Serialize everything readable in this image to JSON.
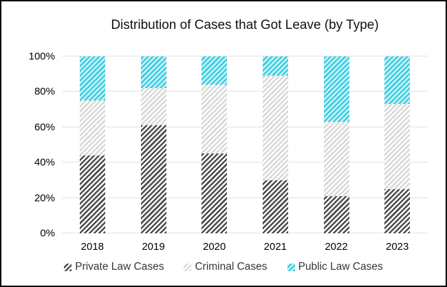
{
  "frame": {
    "background": "#ffffff",
    "border_color": "#000000"
  },
  "chart_data": {
    "type": "bar",
    "stacked": true,
    "percent_stacked": true,
    "title": "Distribution of Cases that Got Leave (by Type)",
    "categories": [
      "2018",
      "2019",
      "2020",
      "2021",
      "2022",
      "2023"
    ],
    "series": [
      {
        "name": "Private Law Cases",
        "values": [
          44,
          61,
          45,
          30,
          21,
          25
        ],
        "stripe_color": "#4c4c4c",
        "gap_color": "#ffffff",
        "pattern": "diagonal-stripes-up-right"
      },
      {
        "name": "Criminal Cases",
        "values": [
          31,
          21,
          39,
          59,
          42,
          48
        ],
        "stripe_color": "#d8d8d8",
        "gap_color": "#ffffff",
        "pattern": "diagonal-stripes-up-right"
      },
      {
        "name": "Public Law Cases",
        "values": [
          25,
          18,
          16,
          11,
          37,
          27
        ],
        "stripe_color": "#3bcde1",
        "gap_color": "#cdf2f8",
        "pattern": "diagonal-stripes-up-right"
      }
    ],
    "xlabel": "",
    "ylabel": "",
    "ylim": [
      0,
      100
    ],
    "y_ticks": [
      "0%",
      "20%",
      "40%",
      "60%",
      "80%",
      "100%"
    ],
    "y_tick_step_percent": 20,
    "grid": true,
    "gridline_color": "#e2e2e2",
    "legend_position": "bottom"
  }
}
